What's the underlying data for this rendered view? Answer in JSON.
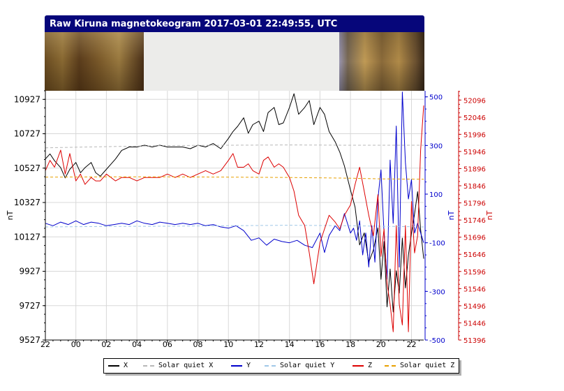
{
  "title": "Raw Kiruna magnetokeogram 2017-03-01 22:49:55, UTC",
  "chart_data": {
    "type": "line",
    "xlabel": "",
    "x_ticks": [
      "22",
      "00",
      "02",
      "04",
      "06",
      "08",
      "10",
      "12",
      "14",
      "16",
      "18",
      "20",
      "22"
    ],
    "x_range_hours": [
      22,
      46.8
    ],
    "left_axis": {
      "label": "nT",
      "color": "#000000",
      "range": [
        9527,
        10977
      ],
      "ticks": [
        10927,
        10727,
        10527,
        10327,
        10127,
        9927,
        9727,
        9527
      ]
    },
    "mid_axis": {
      "label": "nT",
      "color": "#0000cc",
      "range": [
        -500,
        525
      ],
      "ticks": [
        500,
        300,
        100,
        -100,
        -300,
        -500
      ]
    },
    "right_axis": {
      "label": "nT",
      "color": "#cc0000",
      "range": [
        51396,
        52123
      ],
      "ticks": [
        52096,
        52046,
        51996,
        51946,
        51896,
        51846,
        51796,
        51746,
        51696,
        51646,
        51596,
        51546,
        51496,
        51446,
        51396
      ]
    },
    "grid": true,
    "legend_position": "bottom",
    "series": [
      {
        "name": "X",
        "axis": "left",
        "color": "#000000",
        "style": "solid",
        "x": [
          22,
          22.3,
          22.6,
          23,
          23.3,
          23.6,
          24,
          24.3,
          24.6,
          25,
          25.3,
          25.6,
          26,
          26.3,
          26.6,
          27,
          27.5,
          28,
          28.5,
          29,
          29.5,
          30,
          30.5,
          31,
          31.5,
          32,
          32.5,
          33,
          33.5,
          34,
          34.3,
          34.6,
          35,
          35.3,
          35.6,
          36,
          36.3,
          36.6,
          37,
          37.3,
          37.6,
          38,
          38.3,
          38.6,
          39,
          39.3,
          39.6,
          40,
          40.3,
          40.6,
          41,
          41.3,
          41.6,
          42,
          42.3,
          42.6,
          42.9,
          43.2,
          43.5,
          43.8,
          44,
          44.2,
          44.4,
          44.6,
          44.8,
          45,
          45.2,
          45.4,
          45.6,
          45.8,
          46,
          46.2,
          46.4,
          46.6,
          46.8
        ],
        "values": [
          10580,
          10610,
          10570,
          10530,
          10470,
          10520,
          10560,
          10500,
          10530,
          10560,
          10500,
          10480,
          10520,
          10550,
          10580,
          10630,
          10650,
          10650,
          10660,
          10650,
          10660,
          10650,
          10650,
          10650,
          10640,
          10660,
          10650,
          10670,
          10640,
          10700,
          10740,
          10770,
          10820,
          10730,
          10780,
          10800,
          10740,
          10850,
          10880,
          10780,
          10790,
          10880,
          10960,
          10840,
          10880,
          10920,
          10780,
          10880,
          10840,
          10740,
          10680,
          10620,
          10540,
          10400,
          10300,
          10080,
          10150,
          9980,
          10050,
          10180,
          9880,
          10100,
          9720,
          9940,
          9690,
          9930,
          9800,
          10120,
          9830,
          10020,
          10150,
          10260,
          10390,
          10170,
          10000
        ]
      },
      {
        "name": "Solar quiet X",
        "axis": "left",
        "color": "#b8b8b8",
        "style": "dashed",
        "x": [
          22,
          26,
          30,
          34,
          38,
          42,
          44,
          46.8
        ],
        "values": [
          10645,
          10652,
          10658,
          10660,
          10662,
          10660,
          10660,
          10660
        ]
      },
      {
        "name": "Y",
        "axis": "mid",
        "color": "#0000cc",
        "style": "solid",
        "x": [
          22,
          22.5,
          23,
          23.5,
          24,
          24.5,
          25,
          25.5,
          26,
          26.5,
          27,
          27.5,
          28,
          28.5,
          29,
          29.5,
          30,
          30.5,
          31,
          31.5,
          32,
          32.5,
          33,
          33.5,
          34,
          34.5,
          35,
          35.5,
          36,
          36.5,
          37,
          37.5,
          38,
          38.5,
          39,
          39.5,
          40,
          40.3,
          40.6,
          41,
          41.3,
          41.6,
          42,
          42.2,
          42.4,
          42.6,
          42.8,
          43,
          43.2,
          43.4,
          43.6,
          43.8,
          44,
          44.2,
          44.4,
          44.6,
          44.8,
          45,
          45.2,
          45.4,
          45.6,
          45.8,
          46,
          46.2,
          46.4,
          46.8
        ],
        "values": [
          -20,
          -30,
          -15,
          -25,
          -10,
          -25,
          -15,
          -20,
          -30,
          -25,
          -20,
          -25,
          -10,
          -20,
          -25,
          -15,
          -20,
          -25,
          -20,
          -25,
          -20,
          -30,
          -25,
          -35,
          -40,
          -30,
          -50,
          -90,
          -80,
          -110,
          -85,
          -95,
          -100,
          -90,
          -110,
          -120,
          -60,
          -140,
          -70,
          -30,
          -50,
          20,
          -60,
          -40,
          -90,
          -10,
          -150,
          -60,
          -200,
          -30,
          -180,
          80,
          200,
          -60,
          -250,
          240,
          -20,
          380,
          -200,
          520,
          230,
          80,
          160,
          -60,
          -20,
          -100
        ]
      },
      {
        "name": "Solar quiet Y",
        "axis": "mid",
        "color": "#a0c8e8",
        "style": "dashed",
        "x": [
          22,
          26,
          30,
          34,
          38,
          42,
          44,
          46.8
        ],
        "values": [
          -35,
          -33,
          -32,
          -30,
          -28,
          -30,
          -32,
          -35
        ]
      },
      {
        "name": "Z",
        "axis": "right",
        "color": "#dd0000",
        "style": "solid",
        "x": [
          22,
          22.3,
          22.6,
          23,
          23.3,
          23.6,
          24,
          24.3,
          24.6,
          25,
          25.3,
          25.6,
          26,
          26.3,
          26.6,
          27,
          27.5,
          28,
          28.5,
          29,
          29.5,
          30,
          30.5,
          31,
          31.5,
          32,
          32.5,
          33,
          33.5,
          34,
          34.3,
          34.6,
          35,
          35.3,
          35.6,
          36,
          36.3,
          36.6,
          37,
          37.3,
          37.6,
          38,
          38.3,
          38.6,
          39,
          39.3,
          39.6,
          40,
          40.3,
          40.6,
          41,
          41.3,
          41.6,
          42,
          42.3,
          42.6,
          42.9,
          43.2,
          43.5,
          43.8,
          44,
          44.2,
          44.4,
          44.6,
          44.8,
          45,
          45.2,
          45.4,
          45.6,
          45.8,
          46,
          46.2,
          46.4,
          46.6,
          46.8
        ],
        "values": [
          51890,
          51920,
          51900,
          51950,
          51880,
          51940,
          51860,
          51880,
          51850,
          51870,
          51860,
          51860,
          51880,
          51870,
          51860,
          51870,
          51870,
          51860,
          51870,
          51870,
          51870,
          51880,
          51870,
          51880,
          51870,
          51880,
          51890,
          51880,
          51890,
          51920,
          51940,
          51900,
          51900,
          51910,
          51890,
          51880,
          51920,
          51930,
          51900,
          51910,
          51900,
          51870,
          51830,
          51760,
          51730,
          51650,
          51560,
          51680,
          51720,
          51760,
          51740,
          51720,
          51760,
          51790,
          51850,
          51900,
          51830,
          51760,
          51700,
          51820,
          51640,
          51720,
          51560,
          51500,
          51420,
          51730,
          51500,
          51440,
          51730,
          51420,
          51800,
          51650,
          51700,
          51950,
          52080
        ]
      },
      {
        "name": "Solar quiet Z",
        "axis": "right",
        "color": "#e8a000",
        "style": "dashed",
        "x": [
          22,
          26,
          30,
          34,
          38,
          42,
          44,
          46.8
        ],
        "values": [
          51871,
          51872,
          51872,
          51871,
          51870,
          51868,
          51866,
          51865
        ]
      }
    ]
  }
}
